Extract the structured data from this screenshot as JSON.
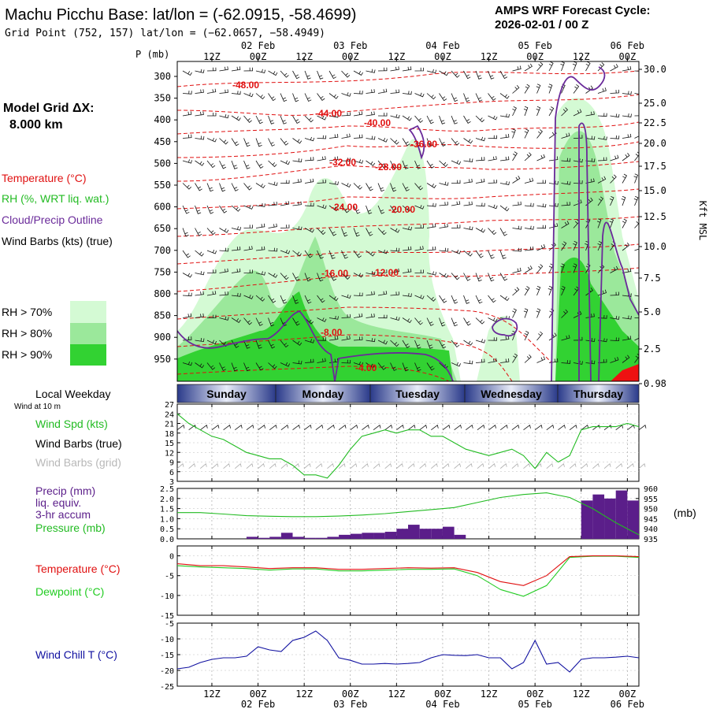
{
  "header": {
    "title": "Machu Picchu Base:  lat/lon = (-62.0915, -58.4699)",
    "grid_point": "Grid Point (752, 157) lat/lon = (−62.0657, −58.4949)",
    "cycle_label": "AMPS WRF Forecast Cycle:",
    "cycle_value": "2026-02-01 / 00  Z",
    "model_grid_label": "Model Grid ΔX:",
    "model_grid_value": "8.000 km",
    "p_unit": "P (mb)",
    "kft_label": "Kft MSL",
    "mb_unit": "(mb)"
  },
  "legend": {
    "temperature": "Temperature (°C)",
    "rh": "RH (%, WRT liq. wat.)",
    "cloud": "Cloud/Precip Outline",
    "wind_barbs": "Wind Barbs (kts) (true)",
    "rh70": "RH > 70%",
    "rh80": "RH > 80%",
    "rh90": "RH > 90%"
  },
  "colors": {
    "rh70": "#d4fad4",
    "rh80": "#9be89b",
    "rh90": "#32d232",
    "temperature": "#e01010",
    "cloud": "#6a2a9a",
    "wind_spd": "#22bb22",
    "precip": "#5b1e8a",
    "dewpoint": "#22cc22",
    "wind_chill": "#1010a0",
    "weekday_band": "#2a3a8a"
  },
  "time_axis": {
    "top_dates": [
      "02 Feb",
      "03 Feb",
      "04 Feb",
      "05 Feb",
      "06 Feb"
    ],
    "top_hours": [
      "12Z",
      "00Z",
      "12Z",
      "00Z",
      "12Z",
      "00Z",
      "12Z",
      "00Z",
      "12Z",
      "00Z"
    ],
    "bottom_hours": [
      "12Z",
      "00Z",
      "12Z",
      "00Z",
      "12Z",
      "00Z",
      "12Z",
      "00Z",
      "12Z",
      "00Z"
    ],
    "bottom_dates": [
      "02 Feb",
      "03 Feb",
      "04 Feb",
      "05 Feb",
      "06 Feb"
    ],
    "local_weekday_label": "Local Weekday",
    "weekdays": [
      "Sunday",
      "Monday",
      "Tuesday",
      "Wednesday",
      "Thursday"
    ]
  },
  "chart_data": [
    {
      "type": "heatmap",
      "y_pressure_ticks": [
        "300",
        "350",
        "400",
        "450",
        "500",
        "550",
        "600",
        "650",
        "700",
        "750",
        "800",
        "850",
        "900",
        "950"
      ],
      "y_height_ticks": [
        "30.0",
        "25.0",
        "22.5",
        "20.0",
        "17.5",
        "15.0",
        "12.5",
        "10.0",
        "7.5",
        "5.0",
        "2.5",
        "0.98"
      ],
      "temperature_contour_labels": [
        "-48.00",
        "-44.00",
        "-40.00",
        "-36.00",
        "-32.00",
        "-28.00",
        "-24.00",
        "-20.00",
        "-16.00",
        "-12.00",
        "-8.00",
        "-4.00"
      ]
    },
    {
      "type": "line",
      "name": "Wind Spd (kts)",
      "sub_labels": [
        "Wind at 10 m",
        "Wind Barbs (true)",
        "Wind Barbs (grid)"
      ],
      "y_ticks": [
        "27",
        "24",
        "21",
        "18",
        "15",
        "12",
        "9",
        "6",
        "3"
      ],
      "ylim": [
        3,
        27
      ],
      "x_hours": [
        0,
        3,
        6,
        9,
        12,
        15,
        18,
        21,
        24,
        27,
        30,
        33,
        36,
        39,
        42,
        45,
        48,
        51,
        54,
        57,
        60,
        63,
        66,
        69,
        72,
        75,
        78,
        81,
        84,
        87,
        90,
        93,
        96,
        99,
        102,
        105,
        108,
        111,
        114,
        117,
        120
      ],
      "values": [
        24,
        21,
        19,
        17,
        16,
        14,
        12,
        11,
        10,
        10,
        8,
        5,
        5,
        4,
        8,
        13,
        17,
        18,
        19,
        18,
        19,
        19,
        17,
        17,
        15,
        13,
        12,
        11,
        12,
        13,
        11,
        7,
        12,
        9,
        11,
        19,
        20,
        20,
        20,
        21,
        20
      ]
    },
    {
      "type": "bar",
      "name": "Precip (mm)",
      "label_lines": [
        "Precip (mm)",
        "liq. equiv.",
        "3-hr accum"
      ],
      "y_ticks": [
        "2.5",
        "2.0",
        "1.5",
        "1.0",
        "0.5",
        "0.0"
      ],
      "ylim": [
        0,
        2.5
      ],
      "x_hours": [
        0,
        3,
        6,
        9,
        12,
        15,
        18,
        21,
        24,
        27,
        30,
        33,
        36,
        39,
        42,
        45,
        48,
        51,
        54,
        57,
        60,
        63,
        66,
        69,
        72,
        75,
        78,
        81,
        84,
        87,
        90,
        93,
        96,
        99,
        102,
        105,
        108,
        111,
        114,
        117
      ],
      "values": [
        0,
        0,
        0,
        0,
        0,
        0,
        0.1,
        0.05,
        0.1,
        0.3,
        0.1,
        0.05,
        0.05,
        0.1,
        0.2,
        0.25,
        0.3,
        0.3,
        0.35,
        0.5,
        0.7,
        0.5,
        0.5,
        0.6,
        0.2,
        0,
        0,
        0,
        0,
        0,
        0,
        0,
        0,
        0,
        0,
        1.9,
        2.2,
        2.0,
        2.4,
        1.9
      ]
    },
    {
      "type": "line",
      "name": "Pressure (mb)",
      "y_ticks": [
        "960",
        "955",
        "950",
        "945",
        "940",
        "935"
      ],
      "ylim": [
        935,
        960
      ],
      "x_hours": [
        0,
        6,
        12,
        18,
        24,
        30,
        36,
        42,
        48,
        54,
        60,
        66,
        72,
        78,
        84,
        90,
        96,
        102,
        108,
        114,
        120
      ],
      "values": [
        948,
        948,
        947.3,
        946.5,
        946.2,
        946,
        946,
        946.3,
        946.8,
        947.5,
        948.5,
        949.5,
        950.5,
        953,
        955.5,
        957,
        957.8,
        955.5,
        950,
        943,
        937
      ]
    },
    {
      "type": "line",
      "name": "Temperature / Dewpoint (°C)",
      "y_ticks": [
        "0",
        "-5",
        "-10",
        "-15"
      ],
      "ylim": [
        -15,
        2.5
      ],
      "x_hours": [
        0,
        6,
        12,
        18,
        24,
        30,
        36,
        42,
        48,
        54,
        60,
        66,
        72,
        78,
        84,
        90,
        96,
        102,
        108,
        114,
        120
      ],
      "series": [
        {
          "name": "Temperature (°C)",
          "values": [
            -2,
            -2.5,
            -2.5,
            -2.8,
            -3.2,
            -3,
            -3,
            -3.4,
            -3.4,
            -3.2,
            -3,
            -3.1,
            -3,
            -4.2,
            -6.5,
            -7.5,
            -5,
            -0.2,
            0,
            0,
            -0.2
          ]
        },
        {
          "name": "Dewpoint (°C)",
          "values": [
            -2.5,
            -2.8,
            -3,
            -3.2,
            -3.6,
            -3.3,
            -3.3,
            -3.8,
            -3.8,
            -3.6,
            -3.4,
            -3.4,
            -3.3,
            -5,
            -8.5,
            -10.2,
            -7.5,
            -0.4,
            -0.1,
            -0.1,
            -0.4
          ]
        }
      ]
    },
    {
      "type": "line",
      "name": "Wind Chill T (°C)",
      "y_ticks": [
        "-5",
        "-10",
        "-15",
        "-20",
        "-25"
      ],
      "ylim": [
        -25,
        -5
      ],
      "x_hours": [
        0,
        3,
        6,
        9,
        12,
        15,
        18,
        21,
        24,
        27,
        30,
        33,
        36,
        39,
        42,
        45,
        48,
        51,
        54,
        57,
        60,
        63,
        66,
        69,
        72,
        75,
        78,
        81,
        84,
        87,
        90,
        93,
        96,
        99,
        102,
        105,
        108,
        111,
        114,
        117,
        120
      ],
      "values": [
        -19.5,
        -19,
        -17.5,
        -16.5,
        -16,
        -16,
        -15.5,
        -12.5,
        -13.5,
        -14,
        -10.5,
        -9.5,
        -7.5,
        -10.5,
        -16,
        -16.8,
        -18,
        -18,
        -17.8,
        -18,
        -17.8,
        -17.5,
        -16,
        -15,
        -15.2,
        -15.3,
        -15,
        -16,
        -16,
        -19.5,
        -17.5,
        -10.5,
        -18,
        -17.5,
        -20.5,
        -16.5,
        -16,
        -16,
        -15.8,
        -15.5,
        -16
      ]
    }
  ]
}
